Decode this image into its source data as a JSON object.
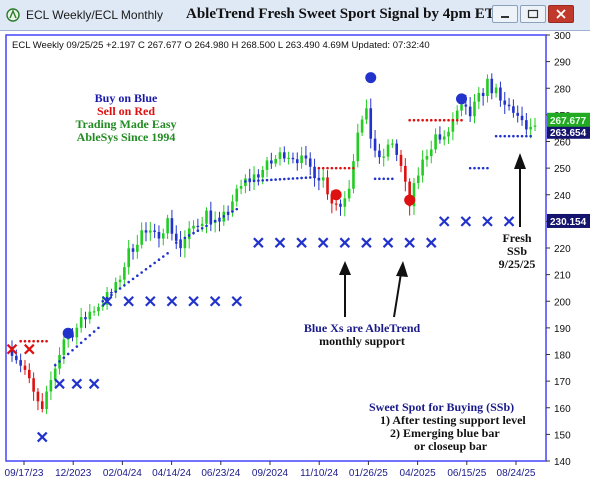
{
  "window": {
    "title": "ECL  Weekly/ECL  Monthly",
    "chart_title": "AbleTrend Fresh Sweet Sport Signal by 4pm ET",
    "buttons": {
      "minimize": "minimize",
      "maximize": "maximize",
      "close": "close"
    }
  },
  "colors": {
    "up": "#22cc22",
    "down": "#dd1111",
    "neutral": "#2233cc",
    "support": "#2233cc",
    "resistance": "#dd1111",
    "bg": "#ffffff",
    "axis_border": "#4444ff"
  },
  "chart_data": {
    "type": "candlestick",
    "info_line": "ECL  Weekly 09/25/25 +2.197 C 267.677 O 264.980 H 268.500 L 263.490 4.69M Updated: 07:32:40",
    "xlabels": [
      "09/17/23",
      "12/2023",
      "02/04/24",
      "04/14/24",
      "06/23/24",
      "09/2024",
      "11/10/24",
      "01/26/25",
      "04/2025",
      "06/15/25",
      "08/24/25"
    ],
    "ylim": [
      140,
      300
    ],
    "yticks": [
      140,
      150,
      160,
      170,
      180,
      190,
      200,
      210,
      220,
      230,
      240,
      250,
      260,
      270,
      280,
      290,
      300
    ],
    "price_label": "263.654",
    "price_value": 263.654,
    "price_label_green": "267.677",
    "support_label": "230.154",
    "support_value": 230.154,
    "annotations": {
      "legend": [
        {
          "text": "Buy on Blue",
          "color": "#1a1aaa"
        },
        {
          "text": "Sell on Red",
          "color": "#dd1111"
        },
        {
          "text": "Trading Made Easy",
          "color": "#228b22"
        },
        {
          "text": "AbleSys Since 1994",
          "color": "#228b22"
        }
      ],
      "blue_xs": [
        "Blue Xs are AbleTrend",
        "monthly support"
      ],
      "fresh": [
        "Fresh",
        "SSb",
        "9/25/25"
      ],
      "ssb_title": "Sweet Spot for Buying (SSb)",
      "ssb_lines": [
        "1) After testing support level",
        "2) Emerging blue bar",
        "or closeup bar"
      ]
    },
    "red_xs": [
      {
        "x": 0,
        "y": 182
      },
      {
        "x": 4,
        "y": 182
      }
    ],
    "blue_xs": [
      {
        "x": 7,
        "y": 149
      },
      {
        "x": 11,
        "y": 169
      },
      {
        "x": 15,
        "y": 169
      },
      {
        "x": 19,
        "y": 169
      },
      {
        "x": 22,
        "y": 200
      },
      {
        "x": 27,
        "y": 200
      },
      {
        "x": 32,
        "y": 200
      },
      {
        "x": 37,
        "y": 200
      },
      {
        "x": 42,
        "y": 200
      },
      {
        "x": 47,
        "y": 200
      },
      {
        "x": 52,
        "y": 200
      },
      {
        "x": 57,
        "y": 222
      },
      {
        "x": 62,
        "y": 222
      },
      {
        "x": 67,
        "y": 222
      },
      {
        "x": 72,
        "y": 222
      },
      {
        "x": 77,
        "y": 222
      },
      {
        "x": 82,
        "y": 222
      },
      {
        "x": 87,
        "y": 222
      },
      {
        "x": 92,
        "y": 222
      },
      {
        "x": 97,
        "y": 222
      },
      {
        "x": 100,
        "y": 230
      },
      {
        "x": 105,
        "y": 230
      },
      {
        "x": 110,
        "y": 230
      },
      {
        "x": 115,
        "y": 230
      }
    ],
    "big_dots": [
      {
        "x": 13,
        "y": 188,
        "color": "#2233cc"
      },
      {
        "x": 83,
        "y": 284,
        "color": "#2233cc"
      },
      {
        "x": 75,
        "y": 240,
        "color": "#dd1111"
      },
      {
        "x": 92,
        "y": 238,
        "color": "#dd1111"
      },
      {
        "x": 104,
        "y": 276,
        "color": "#2233cc"
      }
    ]
  }
}
